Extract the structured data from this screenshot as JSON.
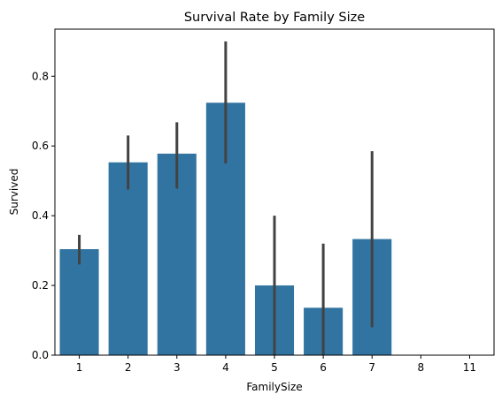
{
  "chart_data": {
    "type": "bar",
    "title": "Survival Rate by Family Size",
    "xlabel": "FamilySize",
    "ylabel": "Survived",
    "categories": [
      "1",
      "2",
      "3",
      "4",
      "5",
      "6",
      "7",
      "8",
      "11"
    ],
    "values": [
      0.304,
      0.553,
      0.578,
      0.724,
      0.2,
      0.136,
      0.333,
      0.0,
      0.0
    ],
    "error_low": [
      0.26,
      0.475,
      0.478,
      0.55,
      0.0,
      0.0,
      0.08,
      null,
      null
    ],
    "error_high": [
      0.345,
      0.63,
      0.668,
      0.9,
      0.4,
      0.32,
      0.585,
      null,
      null
    ],
    "ylim": [
      0,
      0.935
    ],
    "yticks": [
      0.0,
      0.2,
      0.4,
      0.6,
      0.8
    ],
    "ytick_labels": [
      "0.0",
      "0.2",
      "0.4",
      "0.6",
      "0.8"
    ],
    "grid": false,
    "bar_color": "#3274a1",
    "error_color": "#424242"
  }
}
